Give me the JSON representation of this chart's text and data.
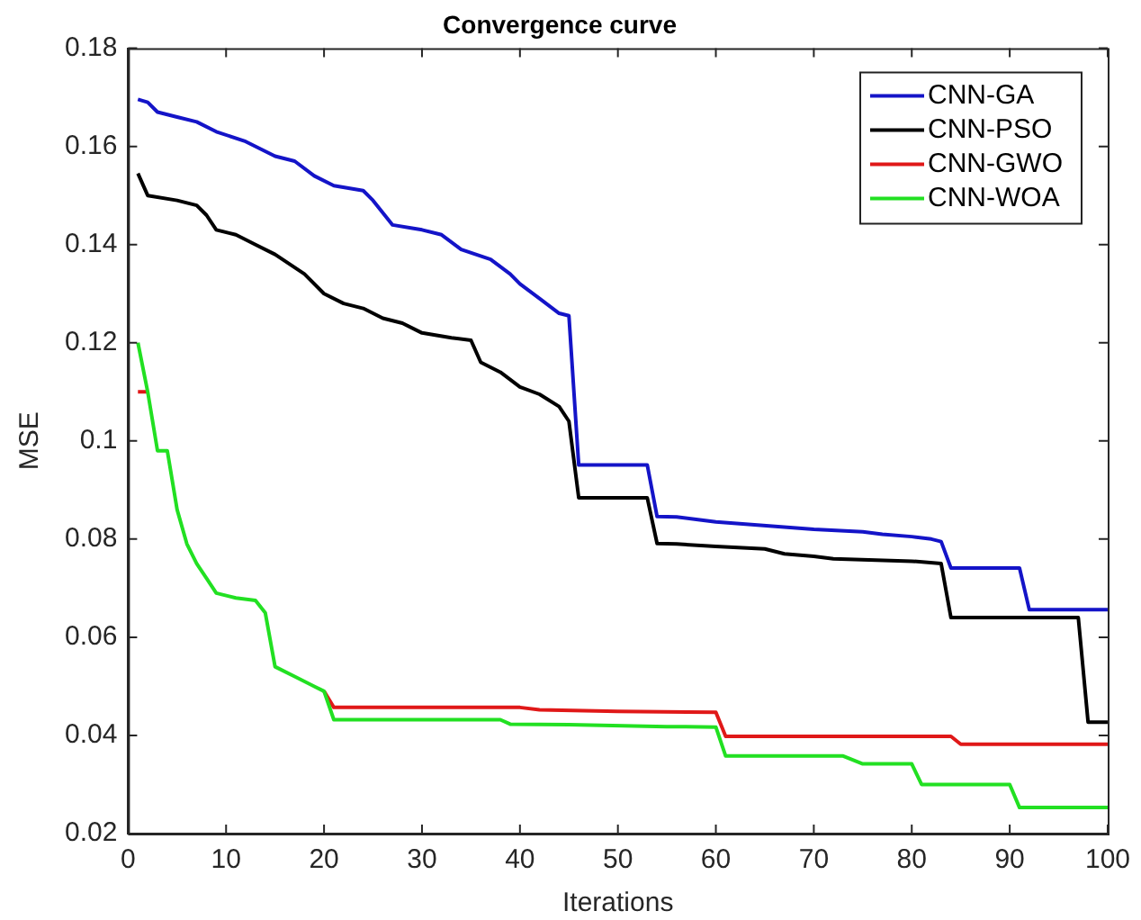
{
  "chart_data": {
    "type": "line",
    "title": "Convergence curve",
    "xlabel": "Iterations",
    "ylabel": "MSE",
    "xlim": [
      0,
      100
    ],
    "xticks": [
      0,
      10,
      20,
      30,
      40,
      50,
      60,
      70,
      80,
      90,
      100
    ],
    "ylim": [
      0.02,
      0.18
    ],
    "yticks": [
      0.02,
      0.04,
      0.06,
      0.08,
      0.1,
      0.12,
      0.14,
      0.16,
      0.18
    ],
    "grid": false,
    "legend": "top right",
    "marker": "none",
    "line_style": "solid",
    "series": [
      {
        "name": "CNN-GA",
        "color": "#1414c8",
        "x": [
          1,
          2,
          3,
          5,
          7,
          9,
          12,
          15,
          17,
          19,
          21,
          24,
          25,
          27,
          30,
          32,
          34,
          37,
          39,
          40,
          42,
          44,
          45,
          46,
          53,
          54,
          56,
          58,
          60,
          70,
          75,
          77,
          80,
          82,
          83,
          84,
          91,
          92,
          100
        ],
        "values": [
          0.1696,
          0.169,
          0.167,
          0.166,
          0.165,
          0.163,
          0.161,
          0.158,
          0.157,
          0.154,
          0.152,
          0.151,
          0.149,
          0.144,
          0.143,
          0.142,
          0.139,
          0.137,
          0.134,
          0.132,
          0.129,
          0.126,
          0.1255,
          0.0951,
          0.0951,
          0.0846,
          0.0845,
          0.084,
          0.0835,
          0.082,
          0.0815,
          0.081,
          0.0805,
          0.08,
          0.0795,
          0.0741,
          0.0741,
          0.0656,
          0.0656
        ]
      },
      {
        "name": "CNN-PSO",
        "color": "#000000",
        "x": [
          1,
          2,
          5,
          7,
          8,
          9,
          11,
          13,
          15,
          18,
          20,
          22,
          24,
          26,
          28,
          30,
          33,
          35,
          36,
          38,
          40,
          42,
          44,
          45,
          46,
          53,
          54,
          56,
          60,
          65,
          67,
          70,
          72,
          80,
          83,
          84,
          97,
          98,
          100
        ],
        "values": [
          0.1545,
          0.15,
          0.149,
          0.148,
          0.146,
          0.143,
          0.142,
          0.14,
          0.138,
          0.134,
          0.13,
          0.128,
          0.127,
          0.125,
          0.124,
          0.122,
          0.121,
          0.1205,
          0.116,
          0.114,
          0.111,
          0.1095,
          0.107,
          0.104,
          0.0884,
          0.0884,
          0.0791,
          0.079,
          0.0785,
          0.078,
          0.077,
          0.0765,
          0.076,
          0.0755,
          0.075,
          0.064,
          0.064,
          0.0427,
          0.0427
        ]
      },
      {
        "name": "CNN-GWO",
        "color": "#e01818",
        "x": [
          1,
          2,
          3,
          20,
          21,
          40,
          42,
          50,
          60,
          61,
          84,
          85,
          100
        ],
        "values": [
          0.11,
          0.11,
          null,
          0.049,
          0.0457,
          0.0457,
          0.0452,
          0.0449,
          0.0447,
          0.0398,
          0.0398,
          0.0382,
          0.0382
        ]
      },
      {
        "name": "CNN-WOA",
        "color": "#22e022",
        "x": [
          1,
          2,
          3,
          4,
          5,
          6,
          7,
          8,
          9,
          11,
          13,
          14,
          15,
          17,
          19,
          20,
          21,
          38,
          39,
          45,
          55,
          60,
          61,
          73,
          75,
          80,
          81,
          90,
          91,
          100
        ],
        "values": [
          0.12,
          0.11,
          0.098,
          0.098,
          0.086,
          0.079,
          0.075,
          0.072,
          0.069,
          0.068,
          0.0675,
          0.065,
          0.054,
          0.052,
          0.05,
          0.049,
          0.0432,
          0.0432,
          0.0423,
          0.0422,
          0.0418,
          0.0417,
          0.0358,
          0.0358,
          0.0342,
          0.0342,
          0.03,
          0.03,
          0.0253,
          0.0253
        ]
      }
    ]
  }
}
